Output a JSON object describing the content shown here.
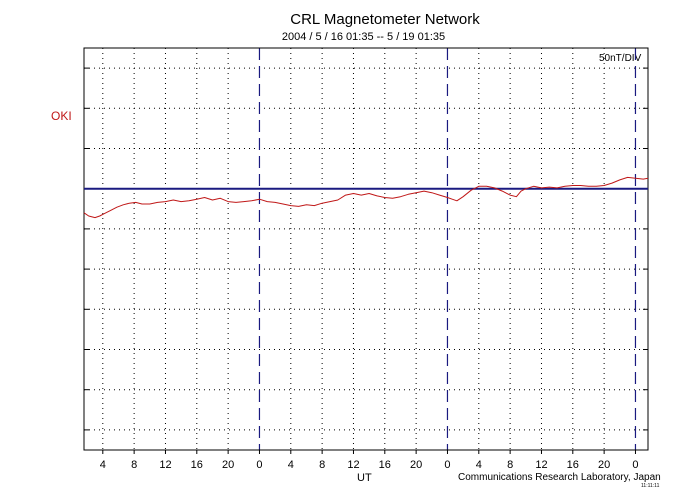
{
  "chart_data": {
    "type": "line",
    "title": "CRL Magnetometer Network",
    "subtitle": "2004 / 5 / 16   01:35 --   5 / 19   01:35",
    "station_label": "OKI",
    "scale_label": "50nT/DIV",
    "xlabel": "UT",
    "credit": "Communications Research Laboratory, Japan",
    "stamp": "11:11:11",
    "x_unit": "hours UT since 2004-05-16 00:00",
    "xlim": [
      1.6,
      73.6
    ],
    "ylim": [
      -325,
      175
    ],
    "y_gridlines": [
      -300,
      -250,
      -200,
      -150,
      -100,
      -50,
      0,
      50,
      100,
      150
    ],
    "baseline_y": 0,
    "day_boundaries": [
      24,
      48,
      72
    ],
    "x_ticks": [
      {
        "x": 4,
        "label": "4"
      },
      {
        "x": 8,
        "label": "8"
      },
      {
        "x": 12,
        "label": "12"
      },
      {
        "x": 16,
        "label": "16"
      },
      {
        "x": 20,
        "label": "20"
      },
      {
        "x": 24,
        "label": "0"
      },
      {
        "x": 28,
        "label": "4"
      },
      {
        "x": 32,
        "label": "8"
      },
      {
        "x": 36,
        "label": "12"
      },
      {
        "x": 40,
        "label": "16"
      },
      {
        "x": 44,
        "label": "20"
      },
      {
        "x": 48,
        "label": "0"
      },
      {
        "x": 52,
        "label": "4"
      },
      {
        "x": 56,
        "label": "8"
      },
      {
        "x": 60,
        "label": "12"
      },
      {
        "x": 64,
        "label": "16"
      },
      {
        "x": 68,
        "label": "20"
      },
      {
        "x": 72,
        "label": "0"
      }
    ],
    "series": [
      {
        "name": "OKI",
        "color": "#c01818",
        "x": [
          1.6,
          2.2,
          3.0,
          3.6,
          4.2,
          5.0,
          5.8,
          6.6,
          7.4,
          8.2,
          9.0,
          10.0,
          11.0,
          12.0,
          13.0,
          14.0,
          15.0,
          16.0,
          17.0,
          18.0,
          19.0,
          20.0,
          21.0,
          22.0,
          23.0,
          24.0,
          25.0,
          26.0,
          27.0,
          28.0,
          29.0,
          30.0,
          31.0,
          32.0,
          33.0,
          34.0,
          35.0,
          36.0,
          37.0,
          38.0,
          39.0,
          40.0,
          41.0,
          42.0,
          43.0,
          44.0,
          45.0,
          46.0,
          47.0,
          48.0,
          48.6,
          49.2,
          50.0,
          51.0,
          52.0,
          53.0,
          54.0,
          55.0,
          56.0,
          56.8,
          57.4,
          58.0,
          59.0,
          60.0,
          61.0,
          62.0,
          63.0,
          64.0,
          65.0,
          66.0,
          67.0,
          68.0,
          69.0,
          70.0,
          71.0,
          72.0,
          73.0,
          73.6
        ],
        "values": [
          -30,
          -34,
          -36,
          -34,
          -31,
          -27,
          -23,
          -20,
          -18,
          -17,
          -19,
          -19,
          -17,
          -16,
          -14,
          -16,
          -15,
          -13,
          -11,
          -14,
          -12,
          -16,
          -17,
          -16,
          -15,
          -13,
          -16,
          -17,
          -19,
          -21,
          -22,
          -20,
          -21,
          -18,
          -16,
          -14,
          -8,
          -6,
          -8,
          -6,
          -9,
          -11,
          -12,
          -10,
          -7,
          -5,
          -3,
          -5,
          -8,
          -11,
          -13,
          -15,
          -10,
          -2,
          3,
          3,
          1,
          -3,
          -8,
          -10,
          -3,
          0,
          3,
          1,
          2,
          1,
          3,
          4,
          4,
          3,
          3,
          4,
          7,
          11,
          14,
          13,
          12,
          13
        ]
      }
    ],
    "grid": "dotted",
    "legend": "none"
  }
}
